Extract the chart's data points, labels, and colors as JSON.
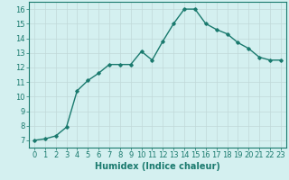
{
  "x": [
    0,
    1,
    2,
    3,
    4,
    5,
    6,
    7,
    8,
    9,
    10,
    11,
    12,
    13,
    14,
    15,
    16,
    17,
    18,
    19,
    20,
    21,
    22,
    23
  ],
  "y": [
    7.0,
    7.1,
    7.3,
    7.9,
    10.4,
    11.1,
    11.6,
    12.2,
    12.2,
    12.2,
    13.1,
    12.5,
    13.8,
    15.0,
    16.0,
    16.0,
    15.0,
    14.6,
    14.3,
    13.7,
    13.3,
    12.7,
    12.5,
    12.5
  ],
  "xlabel": "Humidex (Indice chaleur)",
  "bg_color": "#d4f0f0",
  "line_color": "#1a7a6e",
  "grid_color": "#c0d8d8",
  "ylim": [
    6.5,
    16.5
  ],
  "xlim": [
    -0.5,
    23.5
  ],
  "yticks": [
    7,
    8,
    9,
    10,
    11,
    12,
    13,
    14,
    15,
    16
  ],
  "xticks": [
    0,
    1,
    2,
    3,
    4,
    5,
    6,
    7,
    8,
    9,
    10,
    11,
    12,
    13,
    14,
    15,
    16,
    17,
    18,
    19,
    20,
    21,
    22,
    23
  ],
  "marker": "D",
  "marker_size": 1.8,
  "linewidth": 1.0,
  "xlabel_fontsize": 7,
  "tick_fontsize": 6
}
